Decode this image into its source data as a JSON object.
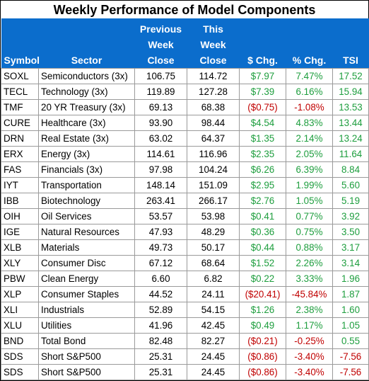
{
  "title": "Weekly Performance of Model Components",
  "headers": {
    "symbol": "Symbol",
    "sector": "Sector",
    "prev_close": [
      "Previous",
      "Week",
      "Close"
    ],
    "this_close": [
      "This",
      "Week",
      "Close"
    ],
    "dollar_chg": "$ Chg.",
    "pct_chg": "% Chg.",
    "tsi": "TSI"
  },
  "colors": {
    "header_bg": "#0b6dcc",
    "positive": "#1e9e3e",
    "negative": "#c00000"
  },
  "rows": [
    {
      "symbol": "SOXL",
      "sector": "Semiconductors (3x)",
      "prev": "106.75",
      "this": "114.72",
      "dchg": "$7.97",
      "pchg": "7.47%",
      "tsi": "17.52",
      "neg": false
    },
    {
      "symbol": "TECL",
      "sector": "Technology (3x)",
      "prev": "119.89",
      "this": "127.28",
      "dchg": "$7.39",
      "pchg": "6.16%",
      "tsi": "15.94",
      "neg": false
    },
    {
      "symbol": "TMF",
      "sector": "20 YR Treasury (3x)",
      "prev": "69.13",
      "this": "68.38",
      "dchg": "($0.75)",
      "pchg": "-1.08%",
      "tsi": "13.53",
      "neg": true
    },
    {
      "symbol": "CURE",
      "sector": "Healthcare (3x)",
      "prev": "93.90",
      "this": "98.44",
      "dchg": "$4.54",
      "pchg": "4.83%",
      "tsi": "13.44",
      "neg": false
    },
    {
      "symbol": "DRN",
      "sector": "Real Estate (3x)",
      "prev": "63.02",
      "this": "64.37",
      "dchg": "$1.35",
      "pchg": "2.14%",
      "tsi": "13.24",
      "neg": false
    },
    {
      "symbol": "ERX",
      "sector": "Energy (3x)",
      "prev": "114.61",
      "this": "116.96",
      "dchg": "$2.35",
      "pchg": "2.05%",
      "tsi": "11.64",
      "neg": false
    },
    {
      "symbol": "FAS",
      "sector": "Financials (3x)",
      "prev": "97.98",
      "this": "104.24",
      "dchg": "$6.26",
      "pchg": "6.39%",
      "tsi": "8.84",
      "neg": false
    },
    {
      "symbol": "IYT",
      "sector": "Transportation",
      "prev": "148.14",
      "this": "151.09",
      "dchg": "$2.95",
      "pchg": "1.99%",
      "tsi": "5.60",
      "neg": false
    },
    {
      "symbol": "IBB",
      "sector": "Biotechnology",
      "prev": "263.41",
      "this": "266.17",
      "dchg": "$2.76",
      "pchg": "1.05%",
      "tsi": "5.19",
      "neg": false
    },
    {
      "symbol": "OIH",
      "sector": "Oil Services",
      "prev": "53.57",
      "this": "53.98",
      "dchg": "$0.41",
      "pchg": "0.77%",
      "tsi": "3.92",
      "neg": false
    },
    {
      "symbol": "IGE",
      "sector": "Natural Resources",
      "prev": "47.93",
      "this": "48.29",
      "dchg": "$0.36",
      "pchg": "0.75%",
      "tsi": "3.50",
      "neg": false
    },
    {
      "symbol": "XLB",
      "sector": "Materials",
      "prev": "49.73",
      "this": "50.17",
      "dchg": "$0.44",
      "pchg": "0.88%",
      "tsi": "3.17",
      "neg": false
    },
    {
      "symbol": "XLY",
      "sector": "Consumer Disc",
      "prev": "67.12",
      "this": "68.64",
      "dchg": "$1.52",
      "pchg": "2.26%",
      "tsi": "3.14",
      "neg": false
    },
    {
      "symbol": "PBW",
      "sector": "Clean Energy",
      "prev": "6.60",
      "this": "6.82",
      "dchg": "$0.22",
      "pchg": "3.33%",
      "tsi": "1.96",
      "neg": false
    },
    {
      "symbol": "XLP",
      "sector": "Consumer Staples",
      "prev": "44.52",
      "this": "24.11",
      "dchg": "($20.41)",
      "pchg": "-45.84%",
      "tsi": "1.87",
      "neg": true
    },
    {
      "symbol": "XLI",
      "sector": "Industrials",
      "prev": "52.89",
      "this": "54.15",
      "dchg": "$1.26",
      "pchg": "2.38%",
      "tsi": "1.60",
      "neg": false
    },
    {
      "symbol": "XLU",
      "sector": "Utilities",
      "prev": "41.96",
      "this": "42.45",
      "dchg": "$0.49",
      "pchg": "1.17%",
      "tsi": "1.05",
      "neg": false
    },
    {
      "symbol": "BND",
      "sector": "Total Bond",
      "prev": "82.48",
      "this": "82.27",
      "dchg": "($0.21)",
      "pchg": "-0.25%",
      "tsi": "0.55",
      "neg": true
    },
    {
      "symbol": "SDS",
      "sector": "Short S&P500",
      "prev": "25.31",
      "this": "24.45",
      "dchg": "($0.86)",
      "pchg": "-3.40%",
      "tsi": "-7.56",
      "neg": true
    },
    {
      "symbol": "SDS",
      "sector": "Short S&P500",
      "prev": "25.31",
      "this": "24.45",
      "dchg": "($0.86)",
      "pchg": "-3.40%",
      "tsi": "-7.56",
      "neg": true
    }
  ]
}
